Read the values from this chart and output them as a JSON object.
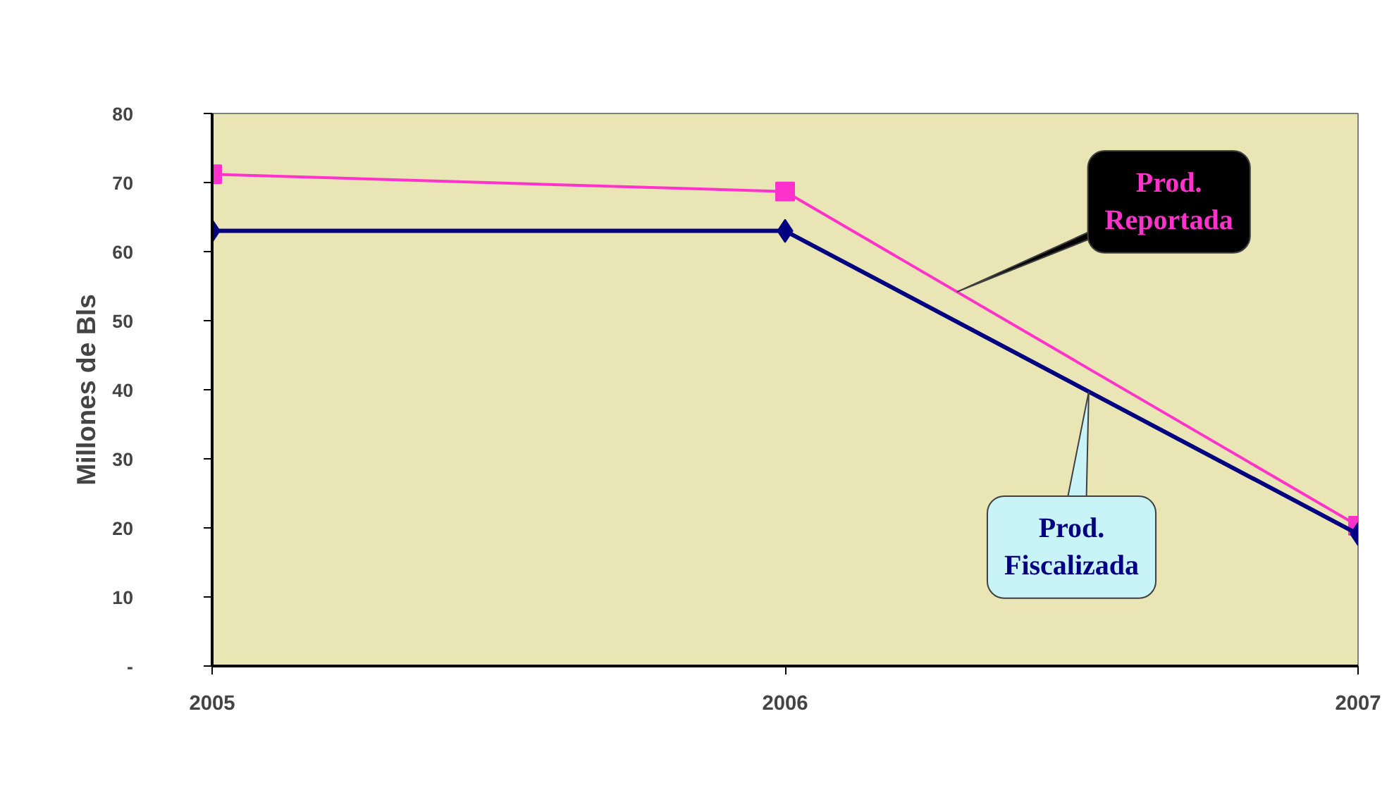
{
  "chart_data": {
    "type": "line",
    "ylabel": "Millones de Bls",
    "x": [
      2005,
      2006,
      2007
    ],
    "xlim": [
      2005,
      2007
    ],
    "xticks": [
      2005,
      2006,
      2007
    ],
    "ylim": [
      0,
      80
    ],
    "yticks": [
      {
        "value": 0,
        "label": "-"
      },
      10,
      20,
      30,
      40,
      50,
      60,
      70,
      80
    ],
    "series": [
      {
        "name": "Prod. Reportada",
        "color": "#ff33cc",
        "values": [
          71.2,
          68.7,
          20.3
        ],
        "marker": "square"
      },
      {
        "name": "Prod. Fiscalizada",
        "color": "#000080",
        "values": [
          63.0,
          63.0,
          19.1
        ],
        "marker": "diamond"
      }
    ],
    "grid": false
  }
}
